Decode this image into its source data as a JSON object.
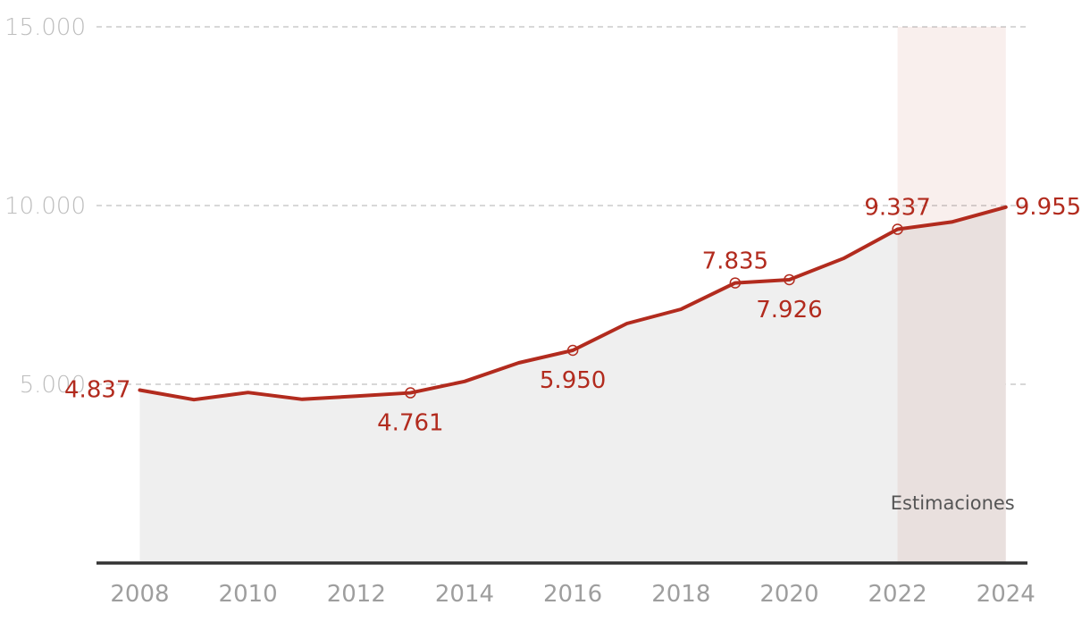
{
  "chart_data": {
    "type": "area",
    "title": "",
    "xlabel": "",
    "ylabel": "",
    "x": [
      2008,
      2009,
      2010,
      2011,
      2012,
      2013,
      2014,
      2015,
      2016,
      2017,
      2018,
      2019,
      2020,
      2021,
      2022,
      2023,
      2024
    ],
    "values": [
      4837,
      4570,
      4770,
      4580,
      4670,
      4761,
      5080,
      5600,
      5950,
      6700,
      7100,
      7835,
      7926,
      8520,
      9337,
      9540,
      9955
    ],
    "ylim": [
      0,
      15000
    ],
    "xlim": [
      2007.2,
      2024.4
    ],
    "yticks": [
      "5.000",
      "10.000",
      "15.000"
    ],
    "ytick_values": [
      5000,
      10000,
      15000
    ],
    "xticks": [
      "2008",
      "2010",
      "2012",
      "2014",
      "2016",
      "2018",
      "2020",
      "2022",
      "2024"
    ],
    "xtick_values": [
      2008,
      2010,
      2012,
      2014,
      2016,
      2018,
      2020,
      2022,
      2024
    ],
    "grid": true,
    "estimate_region": {
      "from": 2022,
      "to": 2024,
      "label": "Estimaciones"
    },
    "annotations": [
      {
        "year": 2008,
        "value": 4837,
        "label": "4.837",
        "marker": false
      },
      {
        "year": 2013,
        "value": 4761,
        "label": "4.761",
        "marker": true
      },
      {
        "year": 2016,
        "value": 5950,
        "label": "5.950",
        "marker": true
      },
      {
        "year": 2019,
        "value": 7835,
        "label": "7.835",
        "marker": true
      },
      {
        "year": 2020,
        "value": 7926,
        "label": "7.926",
        "marker": true
      },
      {
        "year": 2022,
        "value": 9337,
        "label": "9.337",
        "marker": true
      },
      {
        "year": 2024,
        "value": 9955,
        "label": "9.955",
        "marker": false
      }
    ],
    "colors": {
      "line": "#b22b1e",
      "area": "#efefef",
      "estimate": "#f8ecea",
      "grid": "#cccccc",
      "axis": "#333333"
    }
  }
}
